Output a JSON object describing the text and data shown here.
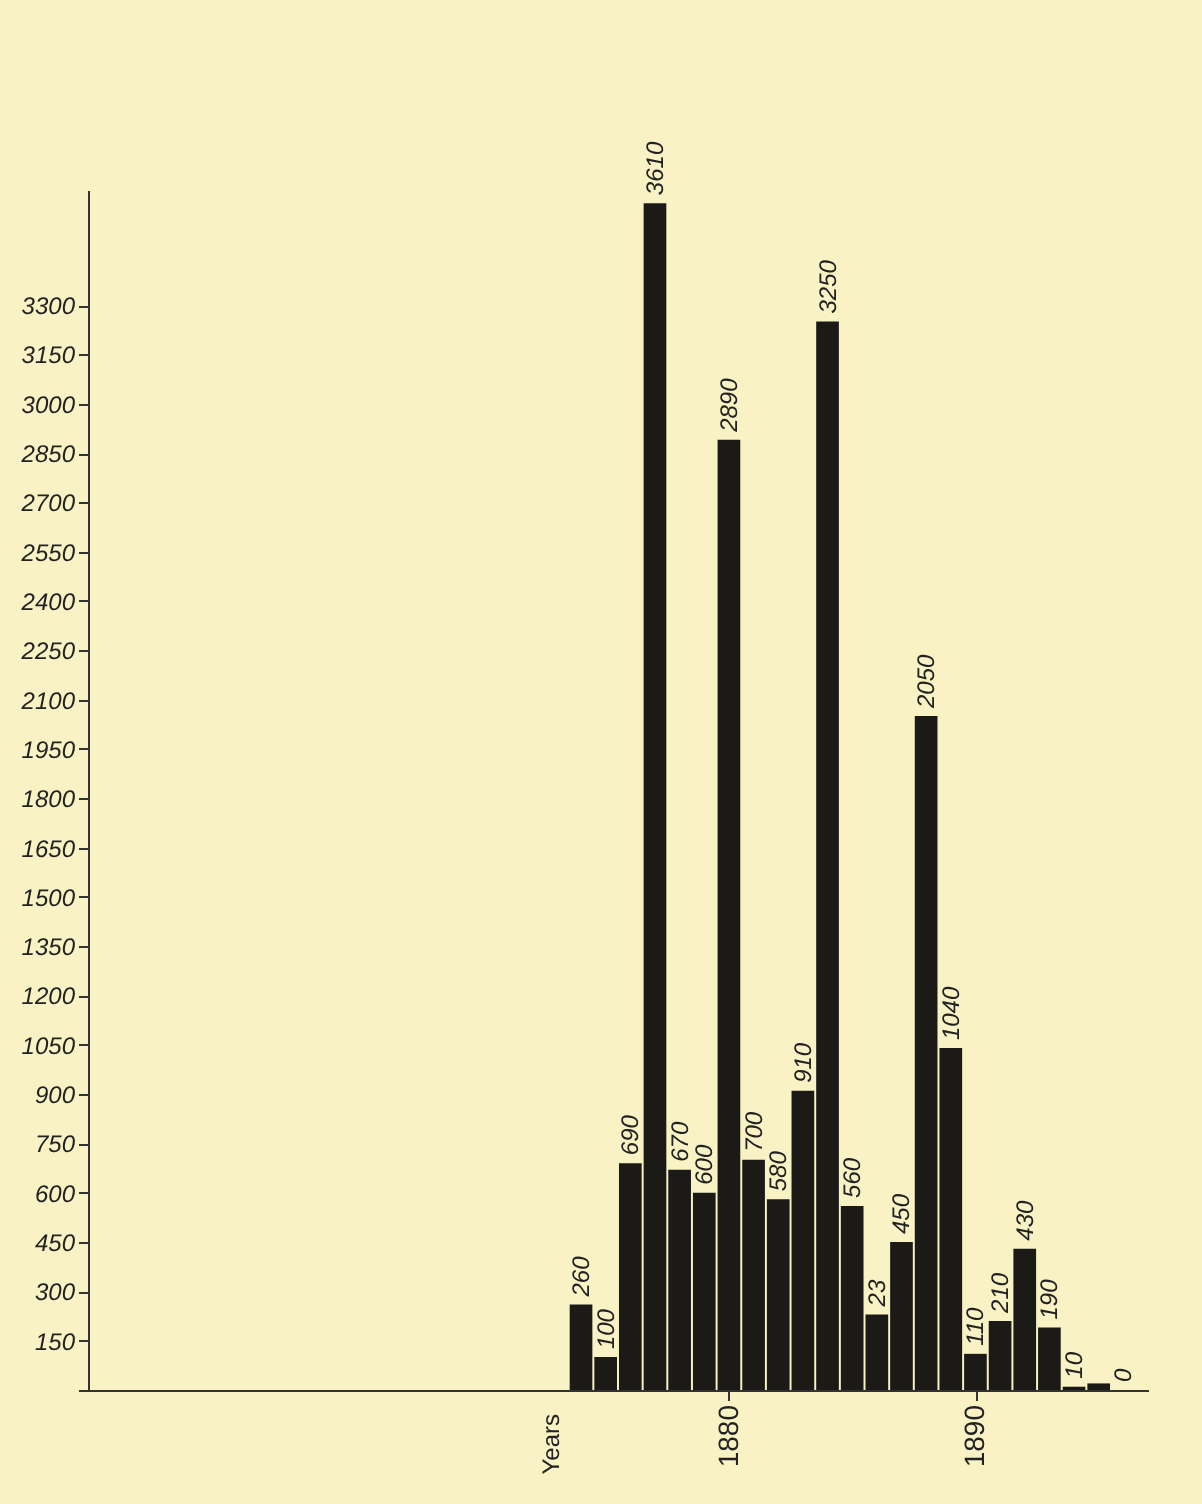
{
  "chart_data": {
    "type": "bar",
    "annotations": [
      "Years",
      {
        "text": "23",
        "x": 1886,
        "y": 230
      }
    ],
    "x": [
      1874,
      1875,
      1876,
      1877,
      1878,
      1879,
      1880,
      1881,
      1882,
      1883,
      1884,
      1885,
      1886,
      1887,
      1888,
      1889,
      1890,
      1891,
      1892,
      1893,
      1894,
      1895,
      1896
    ],
    "values": [
      260,
      100,
      690,
      3610,
      670,
      600,
      2890,
      700,
      580,
      910,
      3250,
      560,
      230,
      450,
      2050,
      1040,
      110,
      210,
      430,
      190,
      10,
      20,
      0
    ],
    "value_labels": [
      "260",
      "100",
      "690",
      "3610",
      "670",
      "600",
      "2890",
      "700",
      "580",
      "910",
      "3250",
      "560",
      null,
      "450",
      "2050",
      "1040",
      "110",
      "210",
      "430",
      "190",
      "10",
      null,
      "0"
    ],
    "color": "#1c1a17",
    "xlim": [
      1854,
      1897
    ],
    "xticks": [
      1880,
      1890
    ],
    "ylim": [
      0,
      3650
    ],
    "yticks": [
      {
        "value": 0,
        "label": null
      },
      150,
      300,
      450,
      600,
      750,
      900,
      1050,
      1200,
      1350,
      1500,
      1650,
      1800,
      1950,
      2100,
      2250,
      2400,
      2550,
      2700,
      2850,
      3000,
      3150,
      3300
    ],
    "grid": false
  }
}
